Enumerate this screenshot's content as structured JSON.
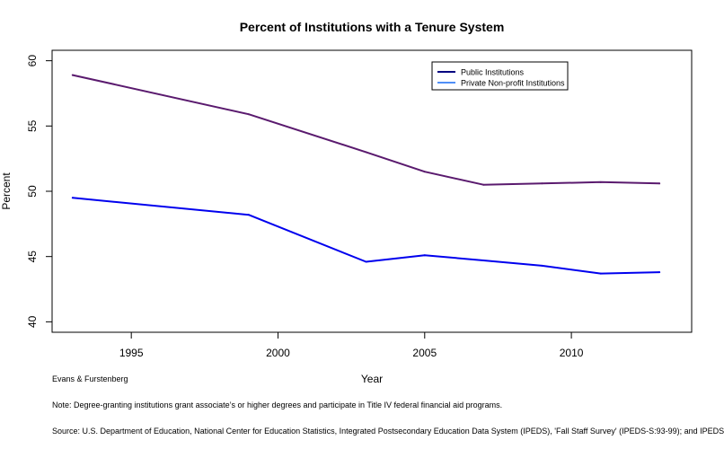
{
  "chart_data": {
    "type": "line",
    "title": "Percent of Institutions with a Tenure System",
    "xlabel": "Year",
    "ylabel": "Percent",
    "xlim": [
      1992.3,
      2014.1
    ],
    "ylim": [
      39.2,
      60.8
    ],
    "xticks": [
      1995,
      2000,
      2005,
      2010
    ],
    "yticks": [
      40,
      45,
      50,
      55,
      60
    ],
    "grid": false,
    "legend_position": "top-right",
    "series": [
      {
        "name": "Public Institutions",
        "color": "#5a1a6e",
        "x": [
          1993,
          1999,
          2003,
          2005,
          2007,
          2009,
          2011,
          2013
        ],
        "values": [
          58.9,
          55.9,
          53.0,
          51.5,
          50.5,
          50.6,
          50.7,
          50.6
        ]
      },
      {
        "name": "Private Non-profit Institutions",
        "color": "#0000ee",
        "x": [
          1993,
          1999,
          2003,
          2005,
          2007,
          2009,
          2011,
          2013
        ],
        "values": [
          49.5,
          48.2,
          44.6,
          45.1,
          44.7,
          44.3,
          43.7,
          43.8
        ]
      }
    ],
    "legend_colors": [
      "#000080",
      "#4f8ff7"
    ]
  },
  "footer": {
    "credit": "Evans & Furstenberg",
    "note": "Note: Degree-granting institutions grant associate’s or higher degrees and participate in Title IV federal financial aid programs.",
    "source": "Source: U.S. Department of Education, National Center for Education Statistics, Integrated Postsecondary Education Data System (IPEDS), 'Fall Staff Survey' (IPEDS-S:93-99); and IPEDS"
  }
}
